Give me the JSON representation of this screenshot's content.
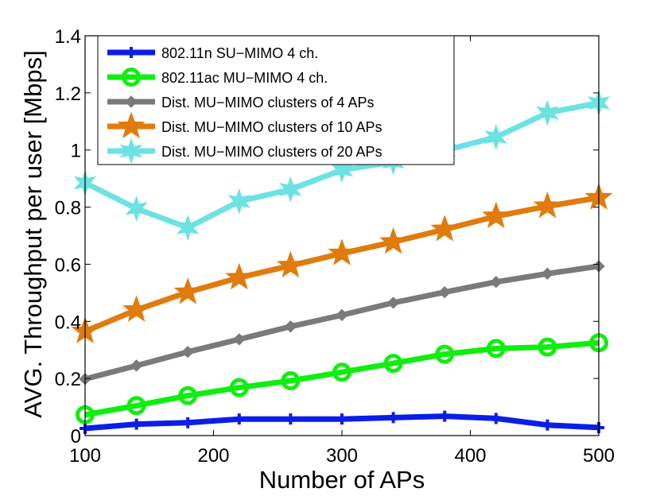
{
  "chart_data": {
    "type": "line",
    "title": "",
    "xlabel": "Number of APs",
    "ylabel": "AVG. Throughput per user [Mbps]",
    "xlim": [
      100,
      500
    ],
    "ylim": [
      0,
      1.4
    ],
    "grid": false,
    "legend_position": "top-left",
    "x": [
      100,
      140,
      180,
      220,
      260,
      300,
      340,
      380,
      420,
      460,
      500
    ],
    "x_ticks": [
      "100",
      "200",
      "300",
      "400",
      "500"
    ],
    "y_ticks": [
      "0",
      "0.2",
      "0.4",
      "0.6",
      "0.8",
      "1",
      "1.2",
      "1.4"
    ],
    "series": [
      {
        "name": "802.11n SU−MIMO 4 ch.",
        "color": "#0a1ee8",
        "marker": "plus",
        "values": [
          0.025,
          0.04,
          0.045,
          0.058,
          0.058,
          0.058,
          0.063,
          0.068,
          0.06,
          0.037,
          0.028
        ]
      },
      {
        "name": "802.11ac MU−MIMO 4 ch.",
        "color": "#10ee10",
        "marker": "circle",
        "values": [
          0.073,
          0.105,
          0.14,
          0.168,
          0.192,
          0.222,
          0.253,
          0.285,
          0.305,
          0.31,
          0.325
        ]
      },
      {
        "name": "Dist. MU−MIMO clusters of 4 APs",
        "color": "#7a7a7a",
        "marker": "diamond",
        "values": [
          0.198,
          0.245,
          0.293,
          0.337,
          0.382,
          0.422,
          0.465,
          0.502,
          0.538,
          0.567,
          0.593
        ]
      },
      {
        "name": "Dist. MU−MIMO clusters of 10 APs",
        "color": "#e07b0c",
        "marker": "star5",
        "values": [
          0.365,
          0.44,
          0.502,
          0.553,
          0.595,
          0.638,
          0.678,
          0.722,
          0.768,
          0.803,
          0.833
        ]
      },
      {
        "name": "Dist. MU−MIMO clusters of 20 APs",
        "color": "#6de2e2",
        "marker": "star6",
        "values": [
          0.885,
          0.795,
          0.728,
          0.82,
          0.862,
          0.93,
          0.958,
          0.998,
          1.045,
          1.13,
          1.165
        ]
      }
    ]
  }
}
